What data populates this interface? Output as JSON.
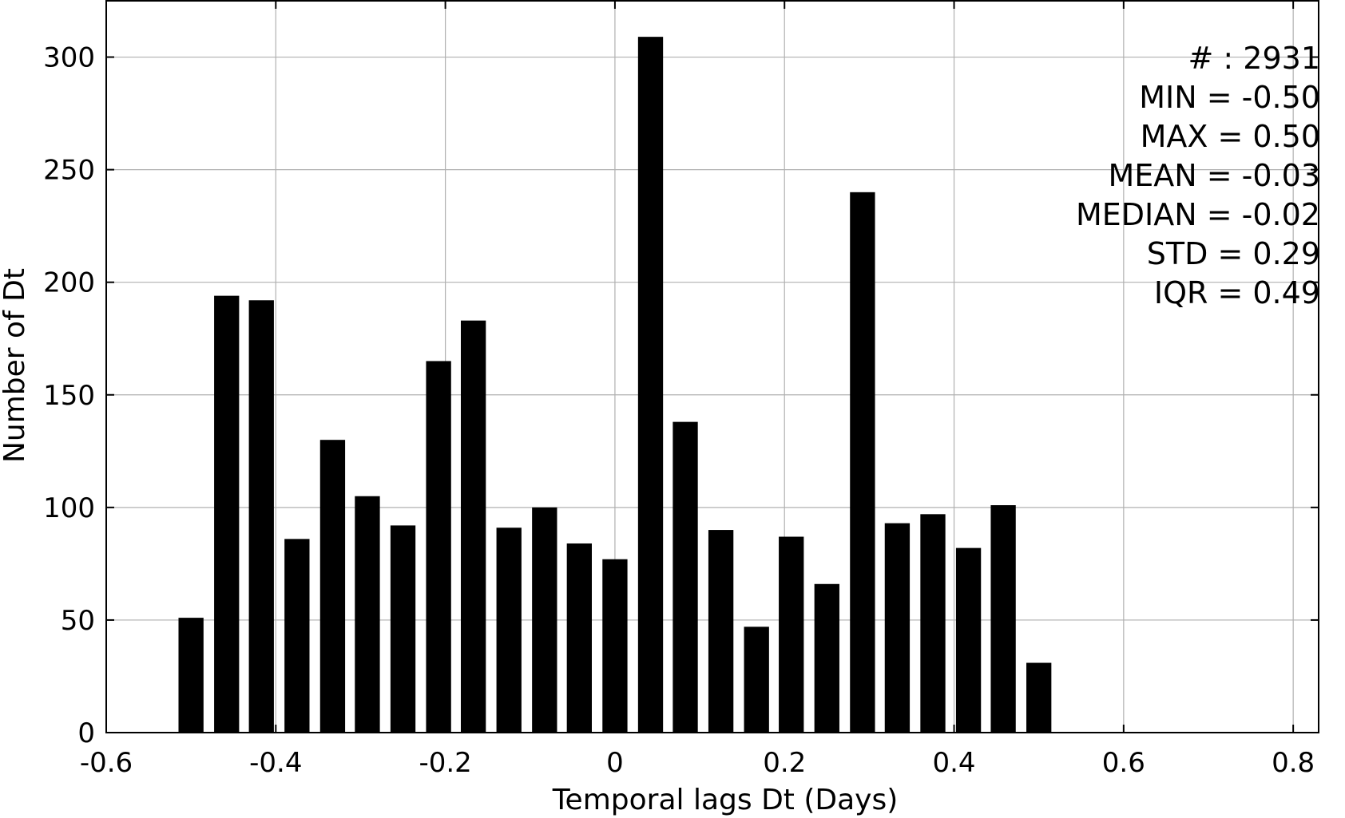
{
  "chart_data": {
    "type": "bar",
    "title": "",
    "xlabel": "Temporal lags Dt (Days)",
    "ylabel": "Number of Dt",
    "xlim": [
      -0.6,
      0.83
    ],
    "ylim": [
      0,
      325
    ],
    "grid": true,
    "bar_color": "#000000",
    "bar_width": 0.0295,
    "x": [
      -0.5,
      -0.458,
      -0.417,
      -0.375,
      -0.333,
      -0.292,
      -0.25,
      -0.208,
      -0.167,
      -0.125,
      -0.083,
      -0.042,
      0.0,
      0.042,
      0.083,
      0.125,
      0.167,
      0.208,
      0.25,
      0.292,
      0.333,
      0.375,
      0.417,
      0.458,
      0.5
    ],
    "values": [
      51,
      194,
      192,
      86,
      130,
      105,
      92,
      165,
      183,
      91,
      100,
      84,
      77,
      309,
      138,
      90,
      47,
      87,
      66,
      240,
      93,
      97,
      82,
      101,
      31
    ],
    "x_ticks": [
      {
        "value": -0.6,
        "label": "-0.6"
      },
      {
        "value": -0.4,
        "label": "-0.4"
      },
      {
        "value": -0.2,
        "label": "-0.2"
      },
      {
        "value": 0,
        "label": "0"
      },
      {
        "value": 0.2,
        "label": "0.2"
      },
      {
        "value": 0.4,
        "label": "0.4"
      },
      {
        "value": 0.6,
        "label": "0.6"
      },
      {
        "value": 0.8,
        "label": "0.8"
      }
    ],
    "y_ticks": [
      {
        "value": 0,
        "label": "0"
      },
      {
        "value": 50,
        "label": "50"
      },
      {
        "value": 100,
        "label": "100"
      },
      {
        "value": 150,
        "label": "150"
      },
      {
        "value": 200,
        "label": "200"
      },
      {
        "value": 250,
        "label": "250"
      },
      {
        "value": 300,
        "label": "300"
      }
    ],
    "annotations": [
      "# : 2931",
      "MIN = -0.50",
      "MAX =  0.50",
      "MEAN = -0.03",
      "MEDIAN = -0.02",
      "STD = 0.29",
      "IQR = 0.49"
    ],
    "annotation_placement": "top-right"
  }
}
